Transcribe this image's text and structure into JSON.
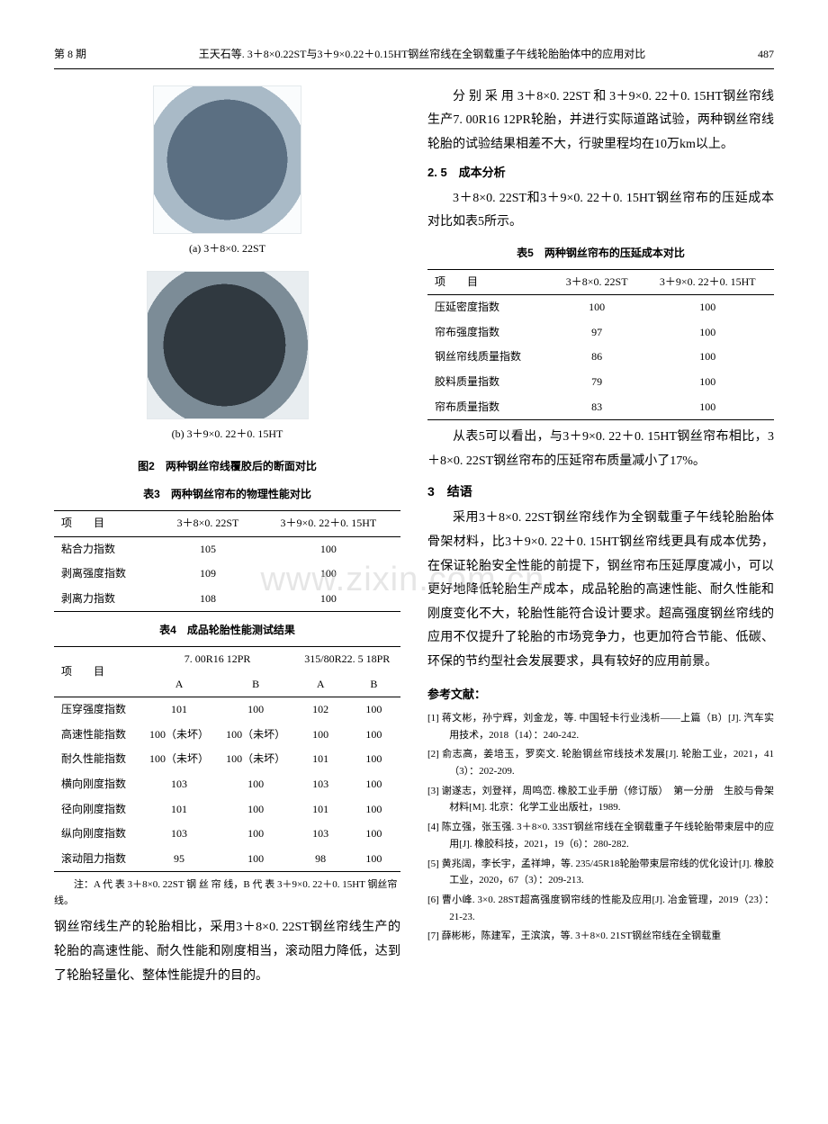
{
  "header": {
    "issue": "第 8 期",
    "title": "王天石等. 3＋8×0.22ST与3＋9×0.22＋0.15HT钢丝帘线在全钢载重子午线轮胎胎体中的应用对比",
    "page": "487"
  },
  "watermark": "www.zixin.com.cn",
  "fig2": {
    "sub_a": "(a) 3＋8×0. 22ST",
    "sub_b": "(b) 3＋9×0. 22＋0. 15HT",
    "caption": "图2　两种钢丝帘线覆胶后的断面对比"
  },
  "table3": {
    "caption": "表3　两种钢丝帘布的物理性能对比",
    "headers": [
      "项　　目",
      "3＋8×0. 22ST",
      "3＋9×0. 22＋0. 15HT"
    ],
    "rows": [
      [
        "粘合力指数",
        "105",
        "100"
      ],
      [
        "剥离强度指数",
        "109",
        "100"
      ],
      [
        "剥离力指数",
        "108",
        "100"
      ]
    ]
  },
  "table4": {
    "caption": "表4　成品轮胎性能测试结果",
    "header_row1": [
      "项　　目",
      "7. 00R16 12PR",
      "315/80R22. 5 18PR"
    ],
    "header_row2": [
      "A",
      "B",
      "A",
      "B"
    ],
    "rows": [
      [
        "压穿强度指数",
        "101",
        "100",
        "102",
        "100"
      ],
      [
        "高速性能指数",
        "100（未坏）",
        "100（未坏）",
        "100",
        "100"
      ],
      [
        "耐久性能指数",
        "100（未坏）",
        "100（未坏）",
        "101",
        "100"
      ],
      [
        "横向刚度指数",
        "103",
        "100",
        "103",
        "100"
      ],
      [
        "径向刚度指数",
        "101",
        "100",
        "101",
        "100"
      ],
      [
        "纵向刚度指数",
        "103",
        "100",
        "103",
        "100"
      ],
      [
        "滚动阻力指数",
        "95",
        "100",
        "98",
        "100"
      ]
    ],
    "note": "注：A 代 表 3＋8×0. 22ST 钢 丝 帘 线，B 代 表 3＋9×0. 22＋0. 15HT 钢丝帘线。"
  },
  "left_para": "钢丝帘线生产的轮胎相比，采用3＋8×0. 22ST钢丝帘线生产的轮胎的高速性能、耐久性能和刚度相当，滚动阻力降低，达到了轮胎轻量化、整体性能提升的目的。",
  "right_col": {
    "p1": "分 别 采 用 3＋8×0. 22ST 和 3＋9×0. 22＋0. 15HT钢丝帘线生产7. 00R16 12PR轮胎，并进行实际道路试验，两种钢丝帘线轮胎的试验结果相差不大，行驶里程均在10万km以上。",
    "h25": "2. 5　成本分析",
    "p2": "3＋8×0. 22ST和3＋9×0. 22＋0. 15HT钢丝帘布的压延成本对比如表5所示。",
    "p3": "从表5可以看出，与3＋9×0. 22＋0. 15HT钢丝帘布相比，3＋8×0. 22ST钢丝帘布的压延帘布质量减小了17%。",
    "h3": "3　结语",
    "p4": "采用3＋8×0. 22ST钢丝帘线作为全钢载重子午线轮胎胎体骨架材料，比3＋9×0. 22＋0. 15HT钢丝帘线更具有成本优势，在保证轮胎安全性能的前提下，钢丝帘布压延厚度减小，可以更好地降低轮胎生产成本，成品轮胎的高速性能、耐久性能和刚度变化不大，轮胎性能符合设计要求。超高强度钢丝帘线的应用不仅提升了轮胎的市场竞争力，也更加符合节能、低碳、环保的节约型社会发展要求，具有较好的应用前景。",
    "refs_heading": "参考文献：",
    "refs": [
      "[1] 蒋文彬，孙宁辉，刘金龙，等. 中国轻卡行业浅析——上篇（B）[J]. 汽车实用技术，2018（14）：240-242.",
      "[2] 俞志高，姜培玉，罗奕文. 轮胎钢丝帘线技术发展[J]. 轮胎工业，2021，41（3）：202-209.",
      "[3] 谢遂志，刘登祥，周鸣峦. 橡胶工业手册（修订版）　第一分册　生胶与骨架材料[M]. 北京：化学工业出版社，1989.",
      "[4] 陈立强，张玉强. 3＋8×0. 33ST钢丝帘线在全钢载重子午线轮胎带束层中的应用[J]. 橡胶科技，2021，19（6）：280-282.",
      "[5] 黄兆阔，李长宇，孟祥坤，等. 235/45R18轮胎带束层帘线的优化设计[J]. 橡胶工业，2020，67（3）：209-213.",
      "[6] 曹小峰. 3×0. 28ST超高强度钢帘线的性能及应用[J]. 冶金管理，2019（23）：21-23.",
      "[7] 薛彬彬，陈建军，王滨滨，等. 3＋8×0. 21ST钢丝帘线在全钢载重"
    ]
  },
  "table5": {
    "caption": "表5　两种钢丝帘布的压延成本对比",
    "headers": [
      "项　　目",
      "3＋8×0. 22ST",
      "3＋9×0. 22＋0. 15HT"
    ],
    "rows": [
      [
        "压延密度指数",
        "100",
        "100"
      ],
      [
        "帘布强度指数",
        "97",
        "100"
      ],
      [
        "钢丝帘线质量指数",
        "86",
        "100"
      ],
      [
        "胶料质量指数",
        "79",
        "100"
      ],
      [
        "帘布质量指数",
        "83",
        "100"
      ]
    ]
  }
}
